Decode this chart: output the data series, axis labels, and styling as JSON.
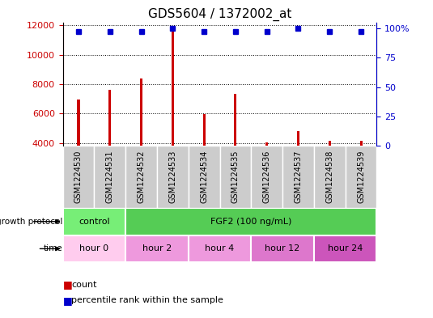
{
  "title": "GDS5604 / 1372002_at",
  "samples": [
    "GSM1224530",
    "GSM1224531",
    "GSM1224532",
    "GSM1224533",
    "GSM1224534",
    "GSM1224535",
    "GSM1224536",
    "GSM1224537",
    "GSM1224538",
    "GSM1224539"
  ],
  "counts": [
    6950,
    7600,
    8400,
    11600,
    5950,
    7350,
    4050,
    4800,
    4150,
    4150
  ],
  "percentiles": [
    97,
    97,
    97,
    100,
    97,
    97,
    97,
    100,
    97,
    97
  ],
  "ylim_left": [
    3800,
    12200
  ],
  "ylim_right": [
    0,
    105
  ],
  "yticks_left": [
    4000,
    6000,
    8000,
    10000,
    12000
  ],
  "yticks_right": [
    0,
    25,
    50,
    75,
    100
  ],
  "bar_color": "#cc0000",
  "dot_color": "#0000cc",
  "left_axis_color": "#cc0000",
  "right_axis_color": "#0000cc",
  "title_fontsize": 11,
  "tick_label_fontsize": 7,
  "bar_width": 0.08,
  "protocol_green_light": "#77ee77",
  "protocol_green_dark": "#55cc55",
  "time_pink_light": "#ffccee",
  "time_pink_mid1": "#ee99dd",
  "time_pink_mid2": "#dd77cc",
  "time_pink_dark": "#cc55bb",
  "gray_box": "#cccccc",
  "legend_fontsize": 8
}
